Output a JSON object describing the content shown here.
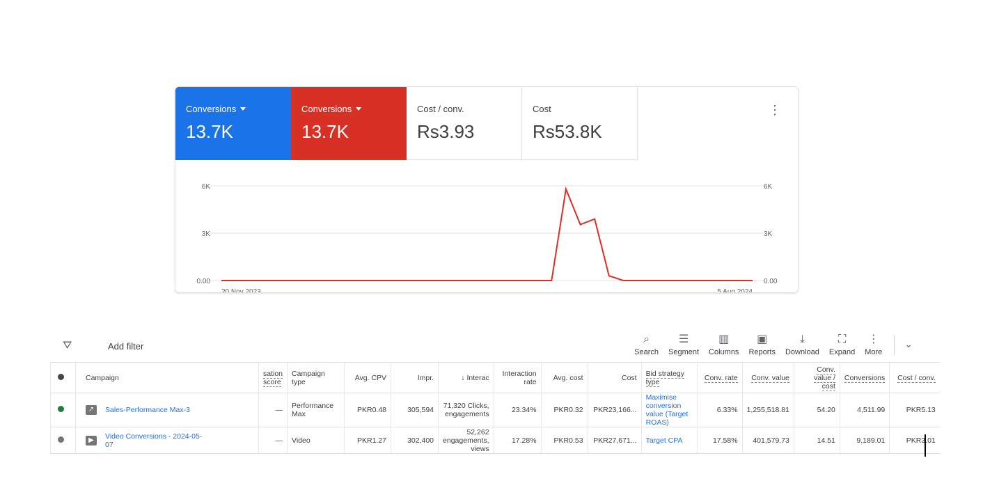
{
  "scorecards": [
    {
      "label": "Conversions",
      "value": "13.7K",
      "color": "#1a73e8",
      "dropdown": true
    },
    {
      "label": "Conversions",
      "value": "13.7K",
      "color": "#d93025",
      "dropdown": true
    },
    {
      "label": "Cost / conv.",
      "value": "Rs3.93"
    },
    {
      "label": "Cost",
      "value": "Rs53.8K"
    }
  ],
  "chart_data": {
    "type": "line",
    "x_start_label": "20 Nov 2023",
    "x_end_label": "5 Aug 2024",
    "x_unit": "week index",
    "ylim": [
      0,
      6000
    ],
    "yticks_left": [
      "0.00",
      "3K",
      "6K"
    ],
    "yticks_right": [
      "0.00",
      "3K",
      "6K"
    ],
    "series": [
      {
        "name": "Conversions",
        "color": "#d93025",
        "values": [
          0,
          0,
          0,
          0,
          0,
          0,
          0,
          0,
          0,
          0,
          0,
          0,
          0,
          0,
          0,
          0,
          0,
          0,
          0,
          0,
          0,
          0,
          0,
          0,
          5800,
          3550,
          3900,
          300,
          0,
          0,
          0,
          0,
          0,
          0,
          0,
          0,
          0,
          0
        ]
      }
    ]
  },
  "toolbar": {
    "add_filter": "Add filter",
    "tools": [
      {
        "icon": "⌕",
        "label": "Search"
      },
      {
        "icon": "☰",
        "label": "Segment"
      },
      {
        "icon": "▥",
        "label": "Columns"
      },
      {
        "icon": "▣",
        "label": "Reports"
      },
      {
        "icon": "⤓",
        "label": "Download"
      },
      {
        "icon": "⛶",
        "label": "Expand"
      },
      {
        "icon": "⋮",
        "label": "More"
      }
    ]
  },
  "table": {
    "headers": [
      "Campaign",
      "sation score",
      "Campaign type",
      "Avg. CPV",
      "Impr.",
      "↓ Interac",
      "Interaction rate",
      "Avg. cost",
      "Cost",
      "Bid strategy type",
      "Conv. rate",
      "Conv. value",
      "Conv. value / cost",
      "Conversions",
      "Cost / conv."
    ],
    "rows": [
      {
        "status": "#188038",
        "icon": "↗",
        "cells": [
          "Sales-Performance Max-3",
          "—",
          "Performance Max",
          "PKR0.48",
          "305,594",
          "71,320 Clicks, engagements",
          "23.34%",
          "PKR0.32",
          "PKR23,166...",
          "Maximise conversion value (Target ROAS)",
          "6.33%",
          "1,255,518.81",
          "54.20",
          "4,511.99",
          "PKR5.13"
        ]
      },
      {
        "status": "#757575",
        "icon": "▶",
        "cells": [
          "Video Conversions - 2024-05-07",
          "—",
          "Video",
          "PKR1.27",
          "302,400",
          "52,262 engagements, views",
          "17.28%",
          "PKR0.53",
          "PKR27,671...",
          "Target CPA",
          "17.58%",
          "401,579.73",
          "14.51",
          "9,189.01",
          "PKR3.01"
        ]
      }
    ]
  }
}
